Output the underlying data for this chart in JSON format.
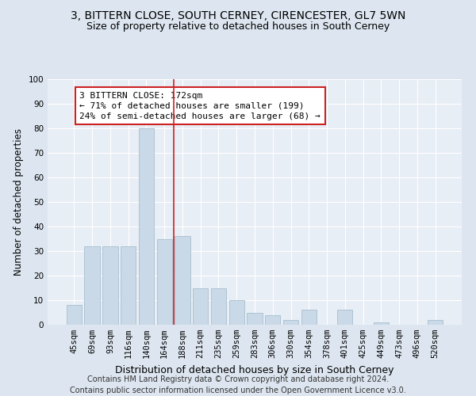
{
  "title": "3, BITTERN CLOSE, SOUTH CERNEY, CIRENCESTER, GL7 5WN",
  "subtitle": "Size of property relative to detached houses in South Cerney",
  "xlabel": "Distribution of detached houses by size in South Cerney",
  "ylabel": "Number of detached properties",
  "categories": [
    "45sqm",
    "69sqm",
    "93sqm",
    "116sqm",
    "140sqm",
    "164sqm",
    "188sqm",
    "211sqm",
    "235sqm",
    "259sqm",
    "283sqm",
    "306sqm",
    "330sqm",
    "354sqm",
    "378sqm",
    "401sqm",
    "425sqm",
    "449sqm",
    "473sqm",
    "496sqm",
    "520sqm"
  ],
  "values": [
    8,
    32,
    32,
    32,
    80,
    35,
    36,
    15,
    15,
    10,
    5,
    4,
    2,
    6,
    0,
    6,
    0,
    1,
    0,
    0,
    2
  ],
  "bar_color": "#c9d9e8",
  "bar_edge_color": "#a8bfce",
  "vline_x_index": 5.5,
  "vline_color": "#cc2222",
  "annotation_text": "3 BITTERN CLOSE: 172sqm\n← 71% of detached houses are smaller (199)\n24% of semi-detached houses are larger (68) →",
  "annotation_box_color": "#cc2222",
  "ylim": [
    0,
    100
  ],
  "yticks": [
    0,
    10,
    20,
    30,
    40,
    50,
    60,
    70,
    80,
    90,
    100
  ],
  "footer_line1": "Contains HM Land Registry data © Crown copyright and database right 2024.",
  "footer_line2": "Contains public sector information licensed under the Open Government Licence v3.0.",
  "bg_color": "#dde6f0",
  "plot_bg_color": "#e8eef5",
  "grid_color": "#ffffff",
  "title_fontsize": 10,
  "subtitle_fontsize": 9,
  "xlabel_fontsize": 9,
  "ylabel_fontsize": 8.5,
  "tick_fontsize": 7.5,
  "annotation_fontsize": 8,
  "footer_fontsize": 7
}
